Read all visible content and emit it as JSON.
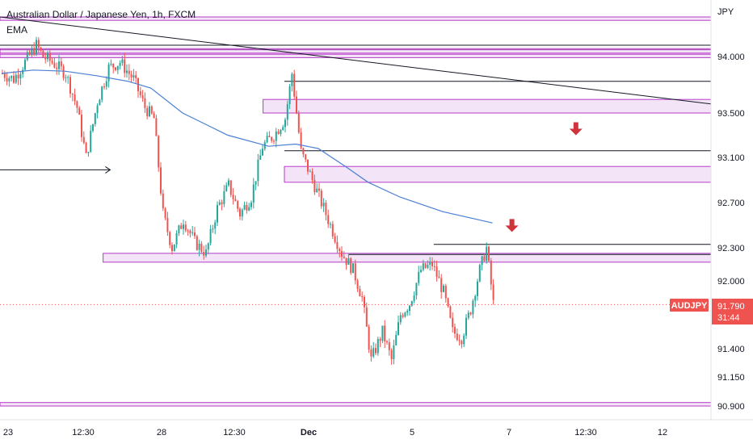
{
  "header": {
    "title": "Australian Dollar / Japanese Yen, 1h, FXCM",
    "indicator": "EMA"
  },
  "colors": {
    "up": "#26a69a",
    "down": "#ef5350",
    "ema": "#4a7fd4",
    "zone_fill": "#f3e5f7",
    "zone_stroke": "#b53bc6",
    "level_line": "#131722",
    "arrow": "#d0343a",
    "price_tag": "#ef5350",
    "axis_text": "#131722"
  },
  "chart_data": {
    "type": "candlestick",
    "symbol": "AUDJPY",
    "y_axis_label": "JPY",
    "y_ticks": [
      "94.000",
      "93.500",
      "93.100",
      "92.700",
      "92.300",
      "92.000",
      "91.400",
      "91.150",
      "90.900"
    ],
    "x_ticks": [
      "23",
      "12:30",
      "28",
      "12:30",
      "Dec",
      "5",
      "7",
      "12:30",
      "12"
    ],
    "last_price": "91.790",
    "countdown": "31:44",
    "close_path": [
      [
        0,
        93.85
      ],
      [
        5,
        93.8
      ],
      [
        10,
        93.95
      ],
      [
        15,
        94.1
      ],
      [
        18,
        94.0
      ],
      [
        22,
        93.95
      ],
      [
        28,
        93.85
      ],
      [
        33,
        93.55
      ],
      [
        37,
        93.1
      ],
      [
        42,
        93.6
      ],
      [
        47,
        93.9
      ],
      [
        52,
        93.95
      ],
      [
        58,
        93.8
      ],
      [
        63,
        93.55
      ],
      [
        67,
        93.45
      ],
      [
        71,
        92.6
      ],
      [
        75,
        92.3
      ],
      [
        80,
        92.55
      ],
      [
        85,
        92.35
      ],
      [
        90,
        92.25
      ],
      [
        95,
        92.65
      ],
      [
        100,
        92.85
      ],
      [
        105,
        92.6
      ],
      [
        110,
        92.75
      ],
      [
        115,
        93.2
      ],
      [
        120,
        93.3
      ],
      [
        125,
        93.45
      ],
      [
        128,
        93.85
      ],
      [
        132,
        93.15
      ],
      [
        136,
        92.95
      ],
      [
        141,
        92.7
      ],
      [
        146,
        92.45
      ],
      [
        150,
        92.25
      ],
      [
        155,
        92.1
      ],
      [
        159,
        91.85
      ],
      [
        163,
        91.3
      ],
      [
        168,
        91.55
      ],
      [
        172,
        91.3
      ],
      [
        176,
        91.7
      ],
      [
        180,
        91.8
      ],
      [
        185,
        92.1
      ],
      [
        190,
        92.15
      ],
      [
        195,
        91.9
      ],
      [
        199,
        91.55
      ],
      [
        203,
        91.5
      ],
      [
        207,
        91.75
      ],
      [
        211,
        92.1
      ],
      [
        214,
        92.3
      ],
      [
        217,
        91.8
      ]
    ],
    "ema_path": [
      [
        0,
        93.85
      ],
      [
        14,
        93.88
      ],
      [
        28,
        93.87
      ],
      [
        42,
        93.83
      ],
      [
        56,
        93.78
      ],
      [
        66,
        93.72
      ],
      [
        80,
        93.5
      ],
      [
        100,
        93.3
      ],
      [
        118,
        93.2
      ],
      [
        130,
        93.22
      ],
      [
        140,
        93.18
      ],
      [
        152,
        93.02
      ],
      [
        162,
        92.88
      ],
      [
        176,
        92.75
      ],
      [
        195,
        92.62
      ],
      [
        217,
        92.52
      ]
    ],
    "zones": [
      {
        "x0": 0,
        "x1": 1,
        "y0": 94.35,
        "y1": 94.32
      },
      {
        "x0": 0,
        "x1": 1,
        "y0": 94.07,
        "y1": 94.03
      },
      {
        "x0": 0,
        "x1": 1,
        "y0": 94.02,
        "y1": 93.99
      },
      {
        "x0": 0.37,
        "x1": 1,
        "y0": 93.62,
        "y1": 93.5
      },
      {
        "x0": 0.4,
        "x1": 1,
        "y0": 93.02,
        "y1": 92.88
      },
      {
        "x0": 0.145,
        "x1": 1,
        "y0": 92.25,
        "y1": 92.17
      },
      {
        "x0": 0,
        "x1": 1,
        "y0": 90.93,
        "y1": 90.9
      }
    ],
    "levels": [
      {
        "x0": 0,
        "x1": 1,
        "y": 94.1,
        "color": "#131722"
      },
      {
        "x0": 0,
        "x1": 1,
        "y": 94.06,
        "color": "#9b3aa8"
      },
      {
        "x0": 0.4,
        "x1": 1,
        "y": 93.78,
        "color": "#131722"
      },
      {
        "x0": 0.4,
        "x1": 1,
        "y": 93.16,
        "color": "#131722"
      },
      {
        "x0": 0.61,
        "x1": 1,
        "y": 92.33,
        "color": "#131722"
      },
      {
        "x0": 0.49,
        "x1": 1,
        "y": 92.24,
        "color": "#131722"
      }
    ],
    "trendline": {
      "x0": 0,
      "y0": 94.35,
      "x1": 1,
      "y1": 93.58
    },
    "arrows": [
      {
        "x": 0.81,
        "y": 93.3
      },
      {
        "x": 0.72,
        "y": 92.44
      }
    ],
    "arrow_line": {
      "x0": 0,
      "x1": 0.155,
      "y": 92.99
    }
  }
}
